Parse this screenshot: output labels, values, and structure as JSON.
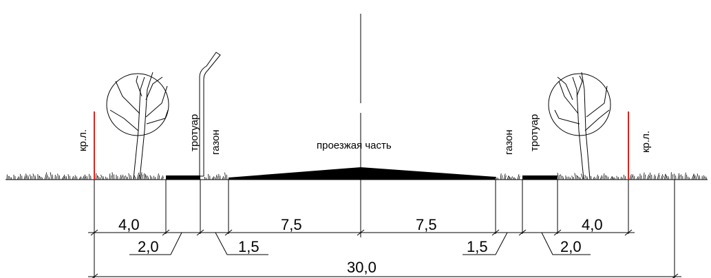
{
  "labels": {
    "red_line_left": "кр.л.",
    "sidewalk_left": "тротуар",
    "lawn_left": "газон",
    "carriageway": "проезжая часть",
    "lawn_right": "газон",
    "sidewalk_right": "тротуар",
    "red_line_right": "кр.л."
  },
  "dimensions": {
    "left_strip": "4,0",
    "lane_left": "7,5",
    "lane_right": "7,5",
    "right_strip": "4,0",
    "sidewalk_left": "2,0",
    "lawn_left": "1,5",
    "lawn_right": "1,5",
    "sidewalk_right": "2,0",
    "total_width": "30,0"
  },
  "colors": {
    "red_line": "#e0201b",
    "ink": "#000000"
  }
}
